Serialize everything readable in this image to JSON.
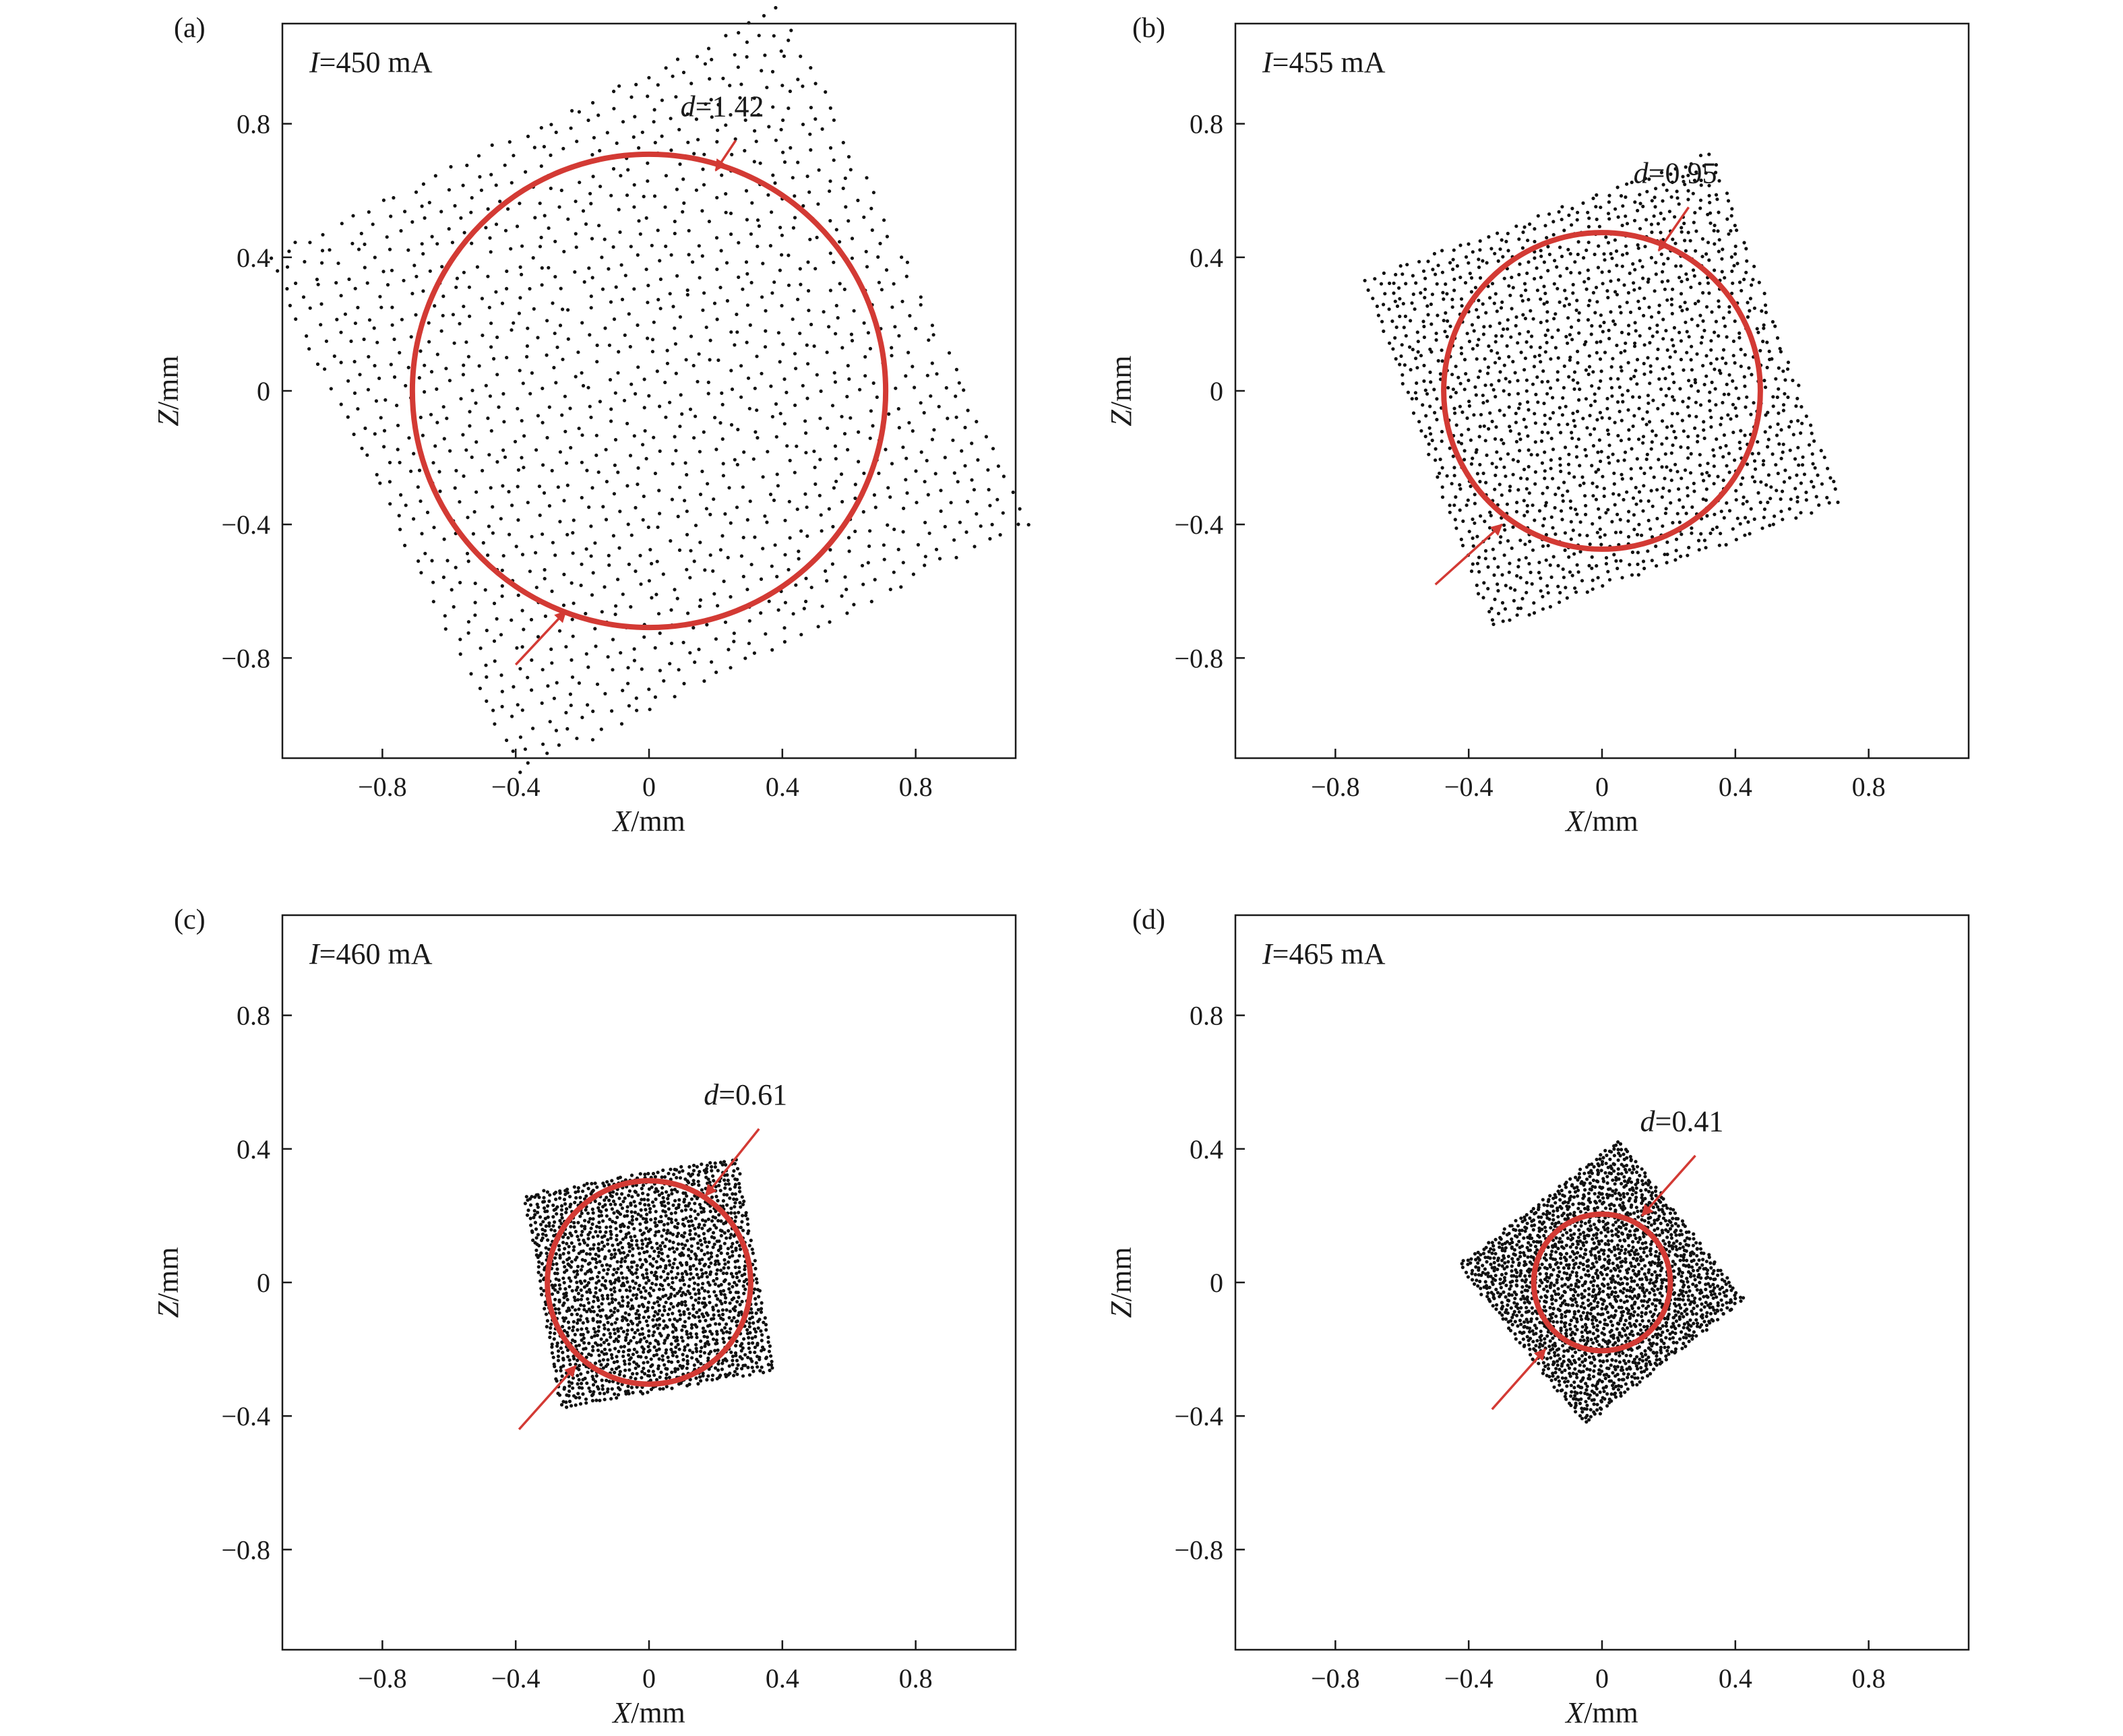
{
  "figure": {
    "description_colors": {
      "circle": "#d33a34",
      "dots": "#111111",
      "frame": "#1a1a1a"
    }
  },
  "chart_data": [
    {
      "panel": "(a)",
      "type": "scatter",
      "annotation_current": {
        "symbol": "I",
        "text": "=450 mA"
      },
      "diameter_label": {
        "symbol": "d",
        "text": "=1.42"
      },
      "diameter_mm": 1.42,
      "circle": {
        "center": [
          0,
          0
        ],
        "radius": 0.71
      },
      "cloud": {
        "shape": "rotated-square",
        "half_width": 0.85,
        "rotation_deg": 26,
        "density": 36,
        "jitter": 0.03
      },
      "arrow_in_top": {
        "from": [
          0.26,
          0.75
        ],
        "to": [
          0.2,
          0.66
        ]
      },
      "arrow_in_bottom": {
        "from": [
          -0.4,
          -0.82
        ],
        "to": [
          -0.25,
          -0.66
        ]
      },
      "xlabel": {
        "symbol": "X",
        "unit": "/mm"
      },
      "ylabel": {
        "symbol": "Z",
        "unit": "/mm"
      },
      "xlim": [
        -1.1,
        1.1
      ],
      "ylim": [
        -1.1,
        1.1
      ],
      "xticks": [
        "−0.8",
        "−0.4",
        "0",
        "0.4",
        "0.8"
      ],
      "xtick_values": [
        -0.8,
        -0.4,
        0,
        0.4,
        0.8
      ],
      "yticks": [
        "0.8",
        "0.4",
        "0",
        "−0.4",
        "−0.8"
      ],
      "ytick_values": [
        0.8,
        0.4,
        0,
        -0.4,
        -0.8
      ]
    },
    {
      "panel": "(b)",
      "type": "scatter",
      "annotation_current": {
        "symbol": "I",
        "text": "=455 mA"
      },
      "diameter_label": {
        "symbol": "d",
        "text": "=0.95"
      },
      "diameter_mm": 0.95,
      "circle": {
        "center": [
          0,
          0
        ],
        "radius": 0.475
      },
      "cloud": {
        "shape": "rotated-square",
        "half_width": 0.55,
        "rotation_deg": 20,
        "density": 40,
        "jitter": 0.02
      },
      "arrow_in_top": {
        "from": [
          0.26,
          0.55
        ],
        "to": [
          0.17,
          0.42
        ]
      },
      "arrow_in_bottom": {
        "from": [
          -0.5,
          -0.58
        ],
        "to": [
          -0.3,
          -0.4
        ]
      },
      "xlabel": {
        "symbol": "X",
        "unit": "/mm"
      },
      "ylabel": {
        "symbol": "Z",
        "unit": "/mm"
      },
      "xlim": [
        -1.1,
        1.1
      ],
      "ylim": [
        -1.1,
        1.1
      ],
      "xticks": [
        "−0.8",
        "−0.4",
        "0",
        "0.4",
        "0.8"
      ],
      "xtick_values": [
        -0.8,
        -0.4,
        0,
        0.4,
        0.8
      ],
      "yticks": [
        "0.8",
        "0.4",
        "0",
        "−0.4",
        "−0.8"
      ],
      "ytick_values": [
        0.8,
        0.4,
        0,
        -0.4,
        -0.8
      ]
    },
    {
      "panel": "(c)",
      "type": "scatter",
      "annotation_current": {
        "symbol": "I",
        "text": "=460 mA"
      },
      "diameter_label": {
        "symbol": "d",
        "text": "=0.61"
      },
      "diameter_mm": 0.61,
      "circle": {
        "center": [
          0,
          0
        ],
        "radius": 0.305
      },
      "cloud": {
        "shape": "rotated-square",
        "half_width": 0.32,
        "rotation_deg": 10,
        "density": 44,
        "jitter": 0.012
      },
      "arrow_in_top": {
        "from": [
          0.33,
          0.46
        ],
        "to": [
          0.17,
          0.26
        ]
      },
      "arrow_in_bottom": {
        "from": [
          -0.39,
          -0.44
        ],
        "to": [
          -0.22,
          -0.25
        ]
      },
      "xlabel": {
        "symbol": "X",
        "unit": "/mm"
      },
      "ylabel": {
        "symbol": "Z",
        "unit": "/mm"
      },
      "xlim": [
        -1.1,
        1.1
      ],
      "ylim": [
        -1.1,
        1.1
      ],
      "xticks": [
        "−0.8",
        "−0.4",
        "0",
        "0.4",
        "0.8"
      ],
      "xtick_values": [
        -0.8,
        -0.4,
        0,
        0.4,
        0.8
      ],
      "yticks": [
        "0.8",
        "0.4",
        "0",
        "−0.4",
        "−0.8"
      ],
      "ytick_values": [
        0.8,
        0.4,
        0,
        -0.4,
        -0.8
      ]
    },
    {
      "panel": "(d)",
      "type": "scatter",
      "annotation_current": {
        "symbol": "I",
        "text": "=465 mA"
      },
      "diameter_label": {
        "symbol": "d",
        "text": "=0.41"
      },
      "diameter_mm": 0.41,
      "circle": {
        "center": [
          0,
          0
        ],
        "radius": 0.205
      },
      "cloud": {
        "shape": "rotated-square",
        "half_width": 0.3,
        "rotation_deg": 38,
        "density": 46,
        "jitter": 0.012
      },
      "arrow_in_top": {
        "from": [
          0.28,
          0.38
        ],
        "to": [
          0.12,
          0.2
        ]
      },
      "arrow_in_bottom": {
        "from": [
          -0.33,
          -0.38
        ],
        "to": [
          -0.17,
          -0.2
        ]
      },
      "xlabel": {
        "symbol": "X",
        "unit": "/mm"
      },
      "ylabel": {
        "symbol": "Z",
        "unit": "/mm"
      },
      "xlim": [
        -1.1,
        1.1
      ],
      "ylim": [
        -1.1,
        1.1
      ],
      "xticks": [
        "−0.8",
        "−0.4",
        "0",
        "0.4",
        "0.8"
      ],
      "xtick_values": [
        -0.8,
        -0.4,
        0,
        0.4,
        0.8
      ],
      "yticks": [
        "0.8",
        "0.4",
        "0",
        "−0.4",
        "−0.8"
      ],
      "ytick_values": [
        0.8,
        0.4,
        0,
        -0.4,
        -0.8
      ]
    }
  ]
}
